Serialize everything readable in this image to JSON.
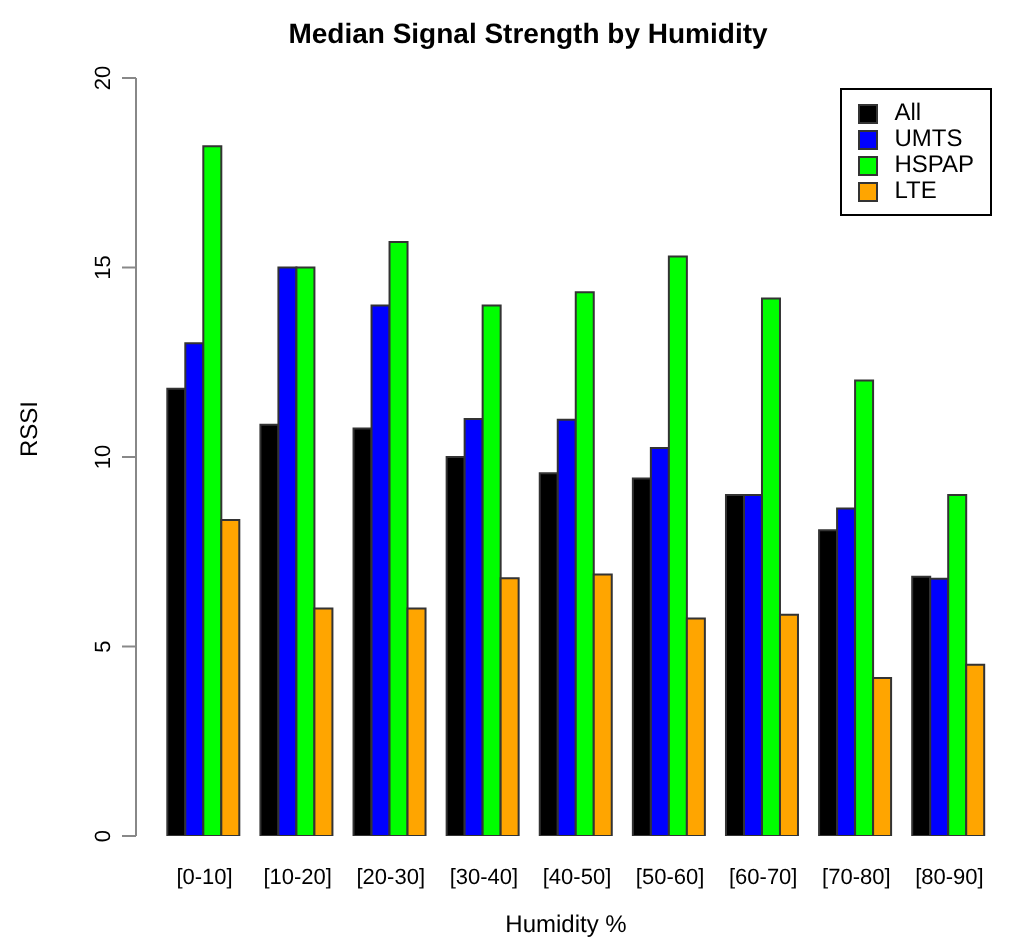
{
  "chart_data": {
    "type": "bar",
    "title": "Median Signal Strength by Humidity",
    "xlabel": "Humidity %",
    "ylabel": "RSSI",
    "categories": [
      "[0-10]",
      "[10-20]",
      "[20-30]",
      "[30-40]",
      "[40-50]",
      "[50-60]",
      "[60-70]",
      "[70-80]",
      "[80-90]"
    ],
    "ylim": [
      0,
      20
    ],
    "yticks": [
      0,
      5,
      10,
      15,
      20
    ],
    "legend": "top right",
    "series": [
      {
        "name": "All",
        "color": "#000000",
        "values": [
          11.8,
          10.85,
          10.75,
          10,
          9.57,
          9.43,
          9,
          8.07,
          6.84
        ]
      },
      {
        "name": "UMTS",
        "color": "#0000ff",
        "values": [
          13,
          15,
          14,
          11,
          10.98,
          10.24,
          9,
          8.64,
          6.79
        ]
      },
      {
        "name": "HSPAP",
        "color": "#00ff00",
        "values": [
          18.2,
          15,
          15.67,
          14,
          14.35,
          15.29,
          14.18,
          12.02,
          9
        ]
      },
      {
        "name": "LTE",
        "color": "#ffa500",
        "values": [
          8.34,
          6,
          6,
          6.8,
          6.9,
          5.74,
          5.84,
          4.17,
          4.52
        ]
      }
    ]
  }
}
